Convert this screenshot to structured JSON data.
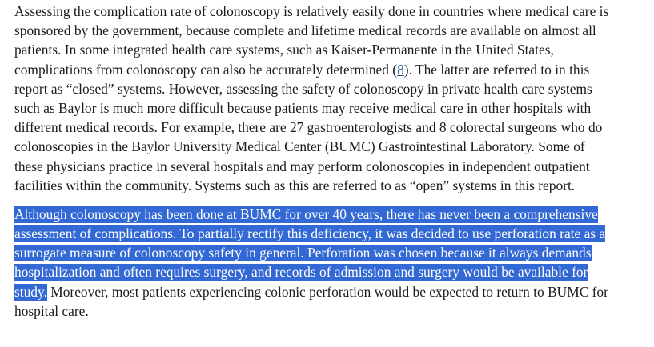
{
  "paragraph1": {
    "line1": "Assessing the complication rate of colonoscopy is relatively easily done in countries where medical care is",
    "line2": "sponsored by the government, because complete and lifetime medical records are available on almost all",
    "line3": "patients. In some integrated health care systems, such as Kaiser-Permanente in the United States,",
    "line4_before": "complications from colonoscopy can also be accurately determined (",
    "citation": "8",
    "line4_after": "). The latter are referred to in this",
    "line5": "report as “closed” systems. However, assessing the safety of colonoscopy in private health care systems",
    "line6": "such as Baylor is much more difficult because patients may receive medical care in other hospitals with",
    "line7": "different medical records. For example, there are 27 gastroenterologists and 8 colorectal surgeons who do",
    "line8": "colonoscopies in the Baylor University Medical Center (BUMC) Gastrointestinal Laboratory. Some of",
    "line9": "these physicians practice in several hospitals and may perform colonoscopies in independent outpatient",
    "line10": "facilities within the community. Systems such as this are referred to as “open” systems in this report."
  },
  "paragraph2": {
    "hl_line1": "Although colonoscopy has been done at BUMC for over 40 years, there has never been a comprehensive",
    "hl_line2": "assessment of complications. To partially rectify this deficiency, it was decided to use perforation rate as a",
    "hl_line3": "surrogate measure of colonoscopy safety in general. Perforation was chosen because it always demands",
    "hl_line4": "hospitalization and often requires surgery, and records of admission and surgery would be available for",
    "hl_line5": "study.",
    "line5_rest": " Moreover, most patients experiencing colonic perforation would be expected to return to BUMC for",
    "line6": "hospital care."
  },
  "colors": {
    "text": "#1b1b1b",
    "selection_highlight": "#3369d4",
    "selection_text": "#ffffff",
    "link": "#205493"
  }
}
